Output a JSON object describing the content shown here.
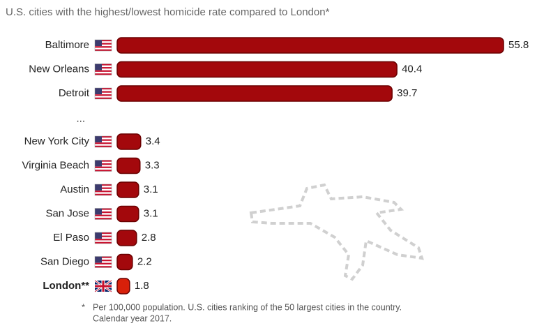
{
  "chart_data": {
    "type": "bar",
    "orientation": "horizontal",
    "subtitle": "U.S. cities with the highest/lowest homicide rate compared to London*",
    "categories": [
      "Baltimore",
      "New Orleans",
      "Detroit",
      "...",
      "New York City",
      "Virginia Beach",
      "Austin",
      "San Jose",
      "El Paso",
      "San Diego",
      "London**"
    ],
    "values": [
      55.8,
      40.4,
      39.7,
      null,
      3.4,
      3.3,
      3.1,
      3.1,
      2.8,
      2.2,
      1.8
    ],
    "colors": [
      "#a3080c",
      "#a3080c",
      "#a3080c",
      "#a3080c",
      "#a3080c",
      "#a3080c",
      "#a3080c",
      "#a3080c",
      "#a3080c",
      "#a3080c",
      "#d8200a"
    ],
    "footnote": {
      "marker": "*",
      "lines": [
        "Per 100,000 population. U.S. cities ranking of the 50 largest cities in the country.",
        "Calendar year 2017."
      ]
    }
  }
}
